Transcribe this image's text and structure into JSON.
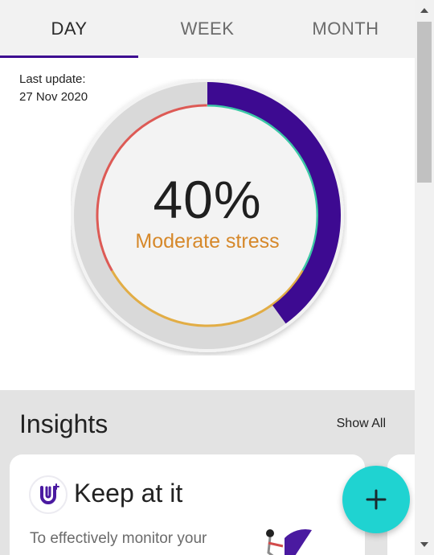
{
  "tabs": [
    {
      "label": "DAY",
      "active": true
    },
    {
      "label": "WEEK",
      "active": false
    },
    {
      "label": "MONTH",
      "active": false
    }
  ],
  "last_update": {
    "label": "Last update:",
    "date": "27 Nov 2020"
  },
  "gauge": {
    "value_text": "40%",
    "status_label": "Moderate stress",
    "fill_fraction": 0.4,
    "colors": {
      "progress": "#3d0a91",
      "track": "#d9d9d9",
      "low": "#3cc7a6",
      "moderate": "#e2ad45",
      "high": "#dd5a55",
      "status": "#d6882a"
    }
  },
  "insights": {
    "title": "Insights",
    "show_all_label": "Show All",
    "card": {
      "icon": "uplift-logo-icon",
      "title": "Keep at it",
      "text": "To effectively monitor your"
    }
  },
  "fab": {
    "icon": "plus-icon",
    "accent": "#1fd3d1"
  }
}
